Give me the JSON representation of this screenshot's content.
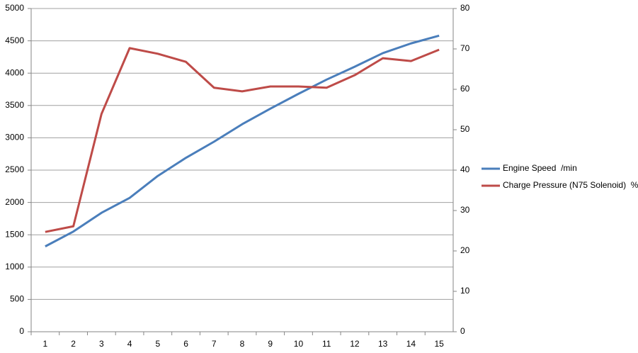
{
  "chart_data": {
    "type": "line",
    "categories": [
      "1",
      "2",
      "3",
      "4",
      "5",
      "6",
      "7",
      "8",
      "9",
      "10",
      "11",
      "12",
      "13",
      "14",
      "15"
    ],
    "series": [
      {
        "name": "Engine Speed  /min",
        "color": "#4a7ebb",
        "values": [
          1320,
          1550,
          1840,
          2070,
          2410,
          2690,
          2940,
          3210,
          3450,
          3680,
          3900,
          4100,
          4310,
          4460,
          4580
        ]
      },
      {
        "name": "Charge Pressure (N75 Solenoid)  %",
        "color": "#be4b48",
        "axis": "y2",
        "values": [
          24.7,
          26.1,
          53.9,
          70.2,
          68.8,
          66.8,
          60.4,
          59.5,
          60.7,
          60.7,
          60.4,
          63.5,
          67.7,
          67.0,
          69.8
        ]
      }
    ],
    "ylim": [
      0,
      5000
    ],
    "yticks": [
      0,
      500,
      1000,
      1500,
      2000,
      2500,
      3000,
      3500,
      4000,
      4500,
      5000
    ],
    "y2lim": [
      0,
      80
    ],
    "y2ticks": [
      0,
      10,
      20,
      30,
      40,
      50,
      60,
      70,
      80
    ],
    "grid": true,
    "legend": "right"
  }
}
